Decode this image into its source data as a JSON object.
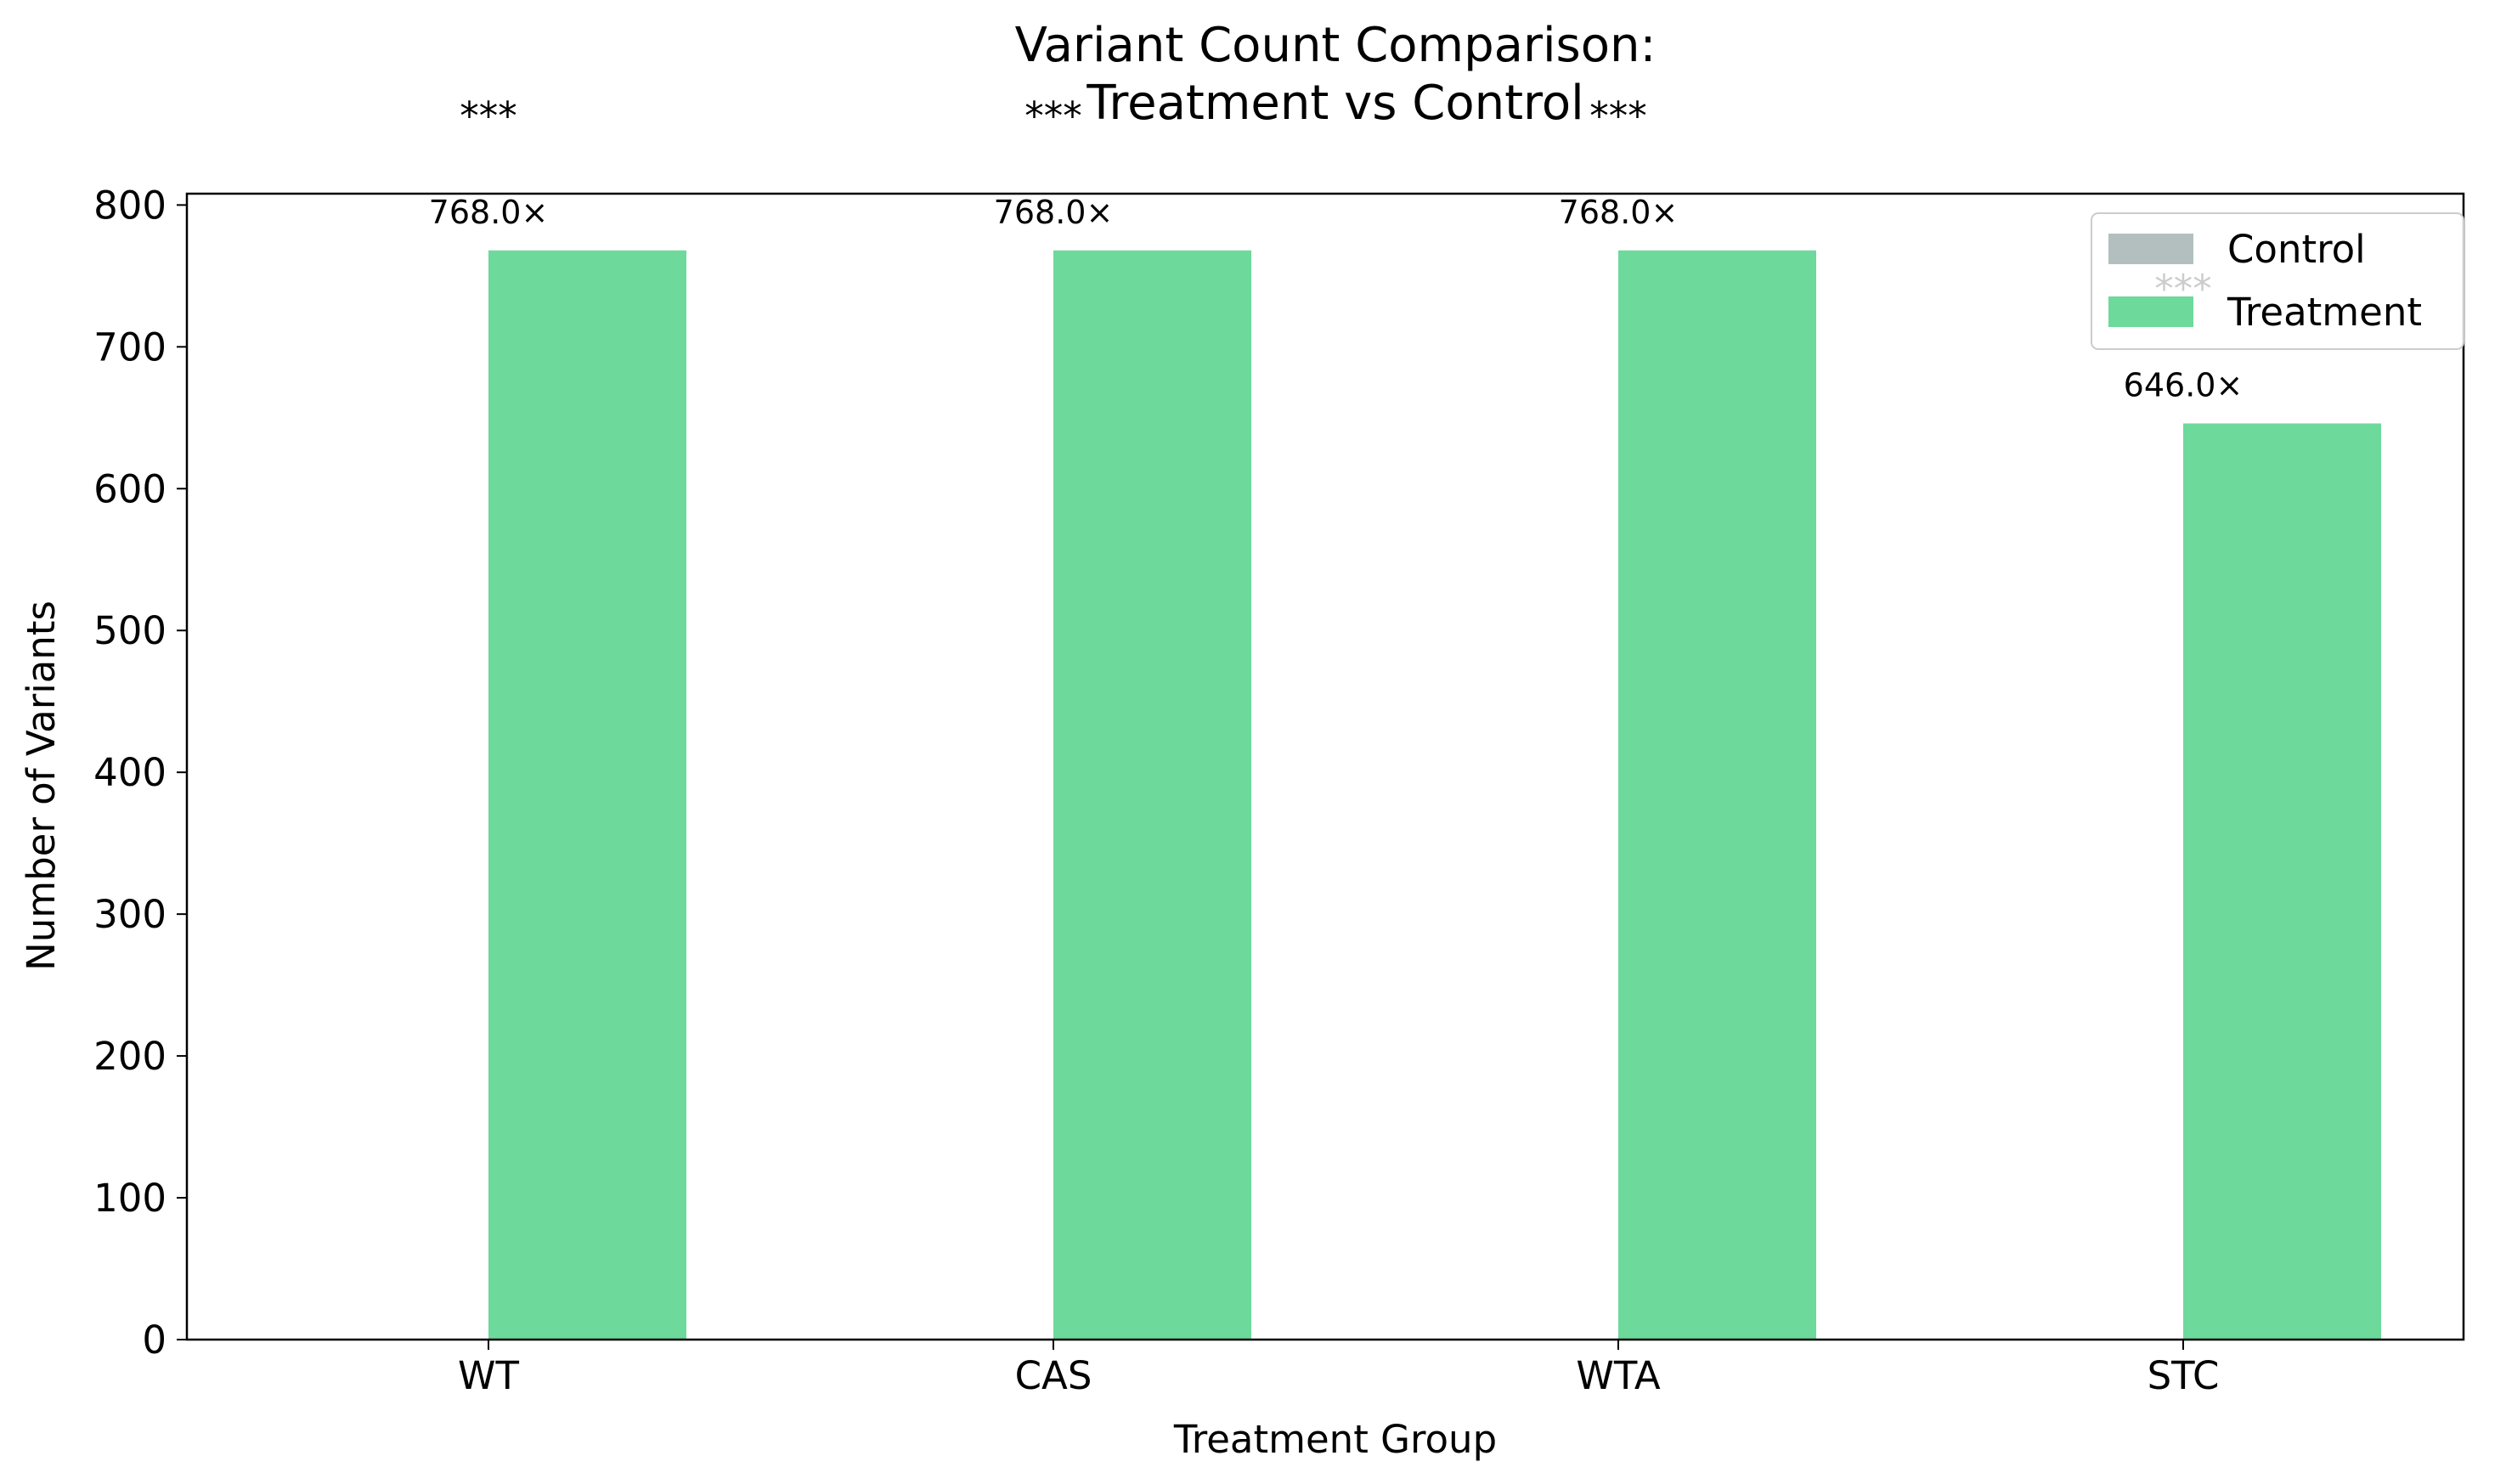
{
  "chart_data": {
    "type": "bar",
    "title": "Variant Count Comparison:",
    "subtitle": "Treatment vs Control",
    "xlabel": "Treatment Group",
    "ylabel": "Number of Variants",
    "categories": [
      "WT",
      "CAS",
      "WTA",
      "STC"
    ],
    "ylim": [
      0,
      808
    ],
    "yticks": [
      0,
      100,
      200,
      300,
      400,
      500,
      600,
      700,
      800
    ],
    "grid": false,
    "legend_position": "top-right",
    "series": [
      {
        "name": "Control",
        "color": "#b3bfbf",
        "values": [
          0,
          0,
          0,
          0
        ]
      },
      {
        "name": "Treatment",
        "color": "#6dd99b",
        "values": [
          768,
          768,
          768,
          646
        ]
      }
    ],
    "data_labels": [
      "768.0×",
      "768.0×",
      "768.0×",
      "646.0×"
    ],
    "significance": [
      "***",
      "***",
      "***",
      "***"
    ]
  }
}
